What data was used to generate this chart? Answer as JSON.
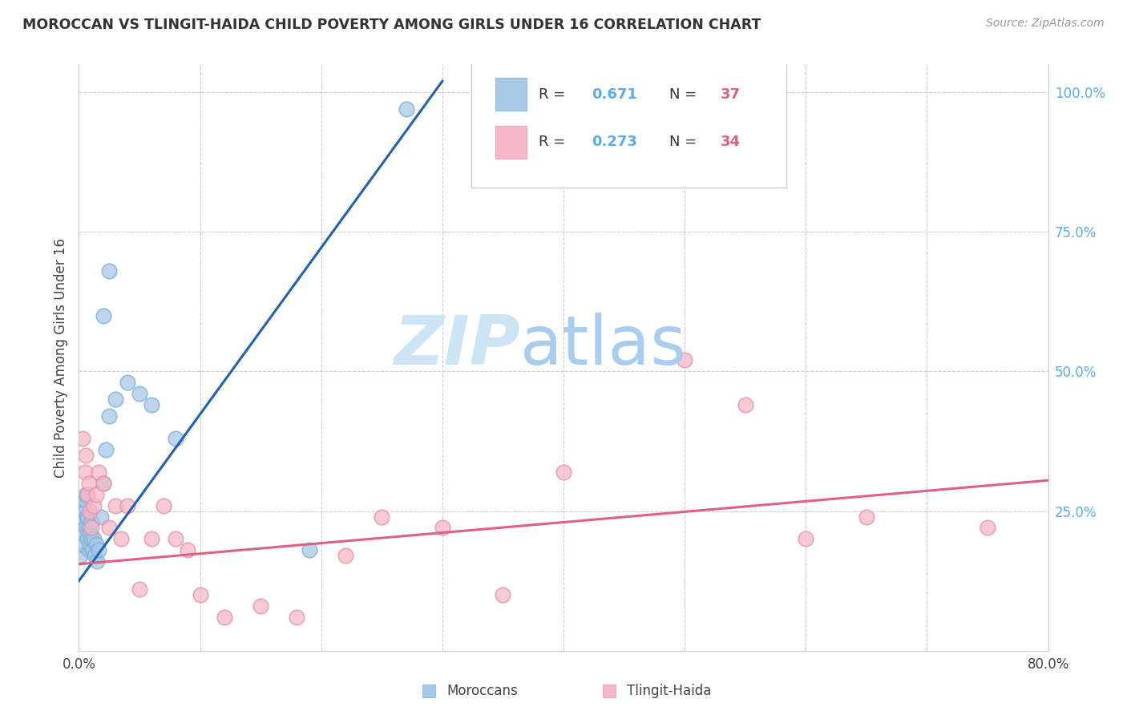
{
  "title": "MOROCCAN VS TLINGIT-HAIDA CHILD POVERTY AMONG GIRLS UNDER 16 CORRELATION CHART",
  "source": "Source: ZipAtlas.com",
  "ylabel": "Child Poverty Among Girls Under 16",
  "legend_label_moroccan": "Moroccans",
  "legend_label_tlingit": "Tlingit-Haida",
  "moroccan_color": "#a8c8e8",
  "moroccan_edge_color": "#7aafd4",
  "tlingit_color": "#f4b8c8",
  "tlingit_edge_color": "#e890a8",
  "moroccan_line_color": "#2060b0",
  "tlingit_line_color": "#e06080",
  "right_tick_color": "#5aabee",
  "watermark_zip_color": "#cce4f4",
  "watermark_atlas_color": "#aaccee",
  "scatter_moroccan_x": [
    0.001,
    0.002,
    0.003,
    0.003,
    0.004,
    0.004,
    0.005,
    0.005,
    0.006,
    0.006,
    0.007,
    0.007,
    0.008,
    0.008,
    0.009,
    0.009,
    0.01,
    0.01,
    0.011,
    0.012,
    0.013,
    0.014,
    0.015,
    0.016,
    0.018,
    0.02,
    0.022,
    0.025,
    0.03,
    0.04,
    0.05,
    0.06,
    0.08,
    0.02,
    0.025,
    0.19,
    0.27
  ],
  "scatter_moroccan_y": [
    0.17,
    0.19,
    0.21,
    0.23,
    0.24,
    0.26,
    0.25,
    0.27,
    0.22,
    0.28,
    0.2,
    0.24,
    0.18,
    0.22,
    0.19,
    0.21,
    0.2,
    0.23,
    0.18,
    0.2,
    0.17,
    0.19,
    0.16,
    0.18,
    0.24,
    0.3,
    0.36,
    0.42,
    0.45,
    0.48,
    0.46,
    0.44,
    0.38,
    0.6,
    0.68,
    0.18,
    0.97
  ],
  "scatter_tlingit_x": [
    0.003,
    0.005,
    0.006,
    0.007,
    0.008,
    0.009,
    0.01,
    0.012,
    0.014,
    0.016,
    0.02,
    0.025,
    0.03,
    0.035,
    0.04,
    0.05,
    0.06,
    0.07,
    0.08,
    0.09,
    0.1,
    0.12,
    0.15,
    0.18,
    0.22,
    0.25,
    0.3,
    0.35,
    0.4,
    0.5,
    0.55,
    0.6,
    0.65,
    0.75
  ],
  "scatter_tlingit_y": [
    0.38,
    0.32,
    0.35,
    0.28,
    0.3,
    0.25,
    0.22,
    0.26,
    0.28,
    0.32,
    0.3,
    0.22,
    0.26,
    0.2,
    0.26,
    0.11,
    0.2,
    0.26,
    0.2,
    0.18,
    0.1,
    0.06,
    0.08,
    0.06,
    0.17,
    0.24,
    0.22,
    0.1,
    0.32,
    0.52,
    0.44,
    0.2,
    0.24,
    0.22
  ],
  "moroccan_trend_x": [
    0.0,
    0.3
  ],
  "moroccan_trend_y": [
    0.125,
    1.02
  ],
  "tlingit_trend_x": [
    0.0,
    0.8
  ],
  "tlingit_trend_y": [
    0.155,
    0.305
  ],
  "xlim": [
    0.0,
    0.8
  ],
  "ylim": [
    0.0,
    1.05
  ],
  "xticks": [
    0.0,
    0.1,
    0.2,
    0.3,
    0.4,
    0.5,
    0.6,
    0.7,
    0.8
  ],
  "xticklabels": [
    "0.0%",
    "",
    "",
    "",
    "",
    "",
    "",
    "",
    "80.0%"
  ],
  "yticks_right": [
    0.0,
    0.25,
    0.5,
    0.75,
    1.0
  ],
  "yticklabels_right": [
    "",
    "25.0%",
    "50.0%",
    "75.0%",
    "100.0%"
  ],
  "hgrid_vals": [
    0.25,
    0.5,
    0.75,
    1.0
  ],
  "vgrid_vals": [
    0.1,
    0.2,
    0.3,
    0.4,
    0.5,
    0.6,
    0.7
  ]
}
